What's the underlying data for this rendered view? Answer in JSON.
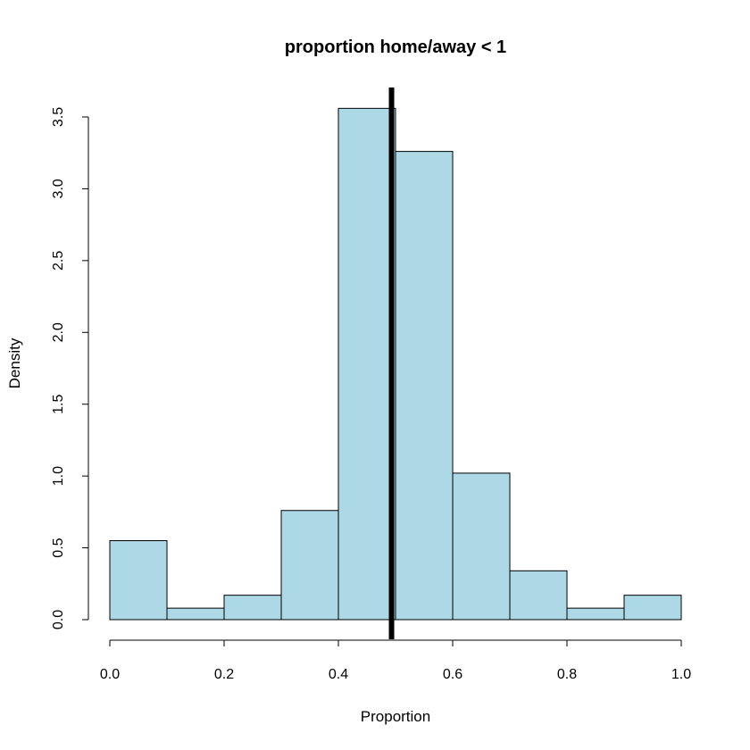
{
  "chart_data": {
    "type": "bar",
    "title": "proportion home/away < 1",
    "xlabel": "Proportion",
    "ylabel": "Density",
    "bin_edges": [
      0.0,
      0.1,
      0.2,
      0.3,
      0.4,
      0.5,
      0.6,
      0.7,
      0.8,
      0.9,
      1.0
    ],
    "values": [
      0.55,
      0.08,
      0.17,
      0.76,
      3.56,
      3.26,
      1.02,
      0.34,
      0.08,
      0.17
    ],
    "xlim": [
      0.0,
      1.0
    ],
    "ylim": [
      0.0,
      3.5
    ],
    "x_ticks": [
      "0.0",
      "0.2",
      "0.4",
      "0.6",
      "0.8",
      "1.0"
    ],
    "y_ticks": [
      "0.0",
      "0.5",
      "1.0",
      "1.5",
      "2.0",
      "2.5",
      "3.0",
      "3.5"
    ],
    "vertical_line_x": 0.493,
    "bar_color": "#add8e6",
    "line_color": "#000000",
    "grid": false
  }
}
